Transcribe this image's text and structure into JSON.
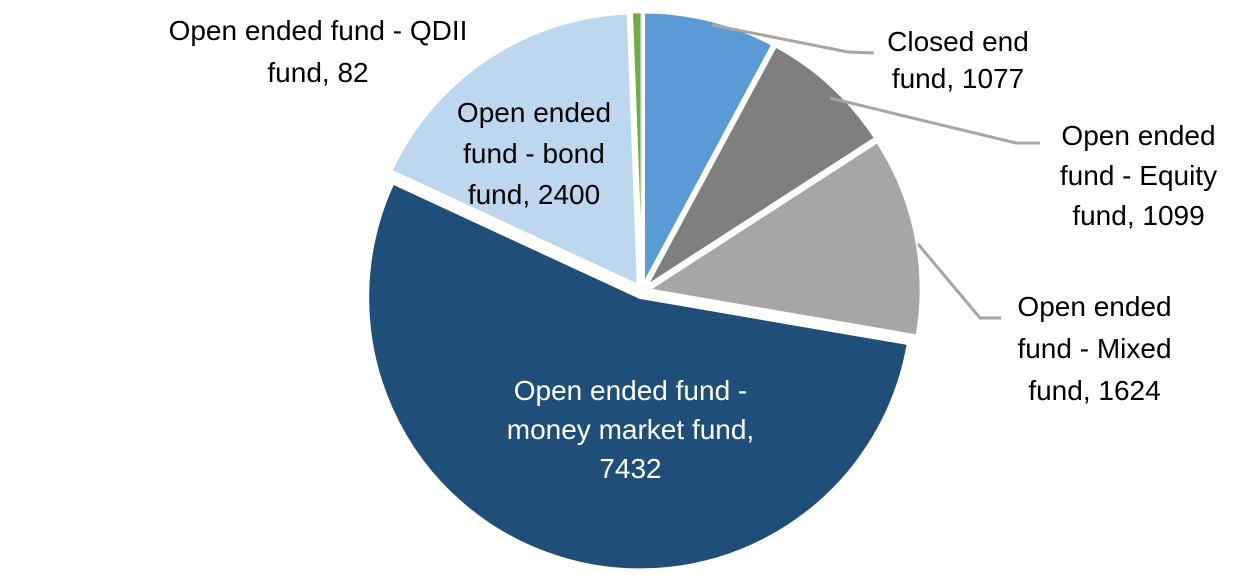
{
  "chart_data": {
    "type": "pie",
    "title": "",
    "total": 13714,
    "start_angle_deg": 0,
    "direction": "clockwise",
    "background_color": "#FFFFFF",
    "leader_line_color": "#A6A6A6",
    "slice_border_color": "#FFFFFF",
    "slices": [
      {
        "id": "closed-end-fund",
        "label": "Closed end fund",
        "value": 1077,
        "color": "#5B9BD5",
        "label_position": "outside",
        "label_color": "#000000",
        "leader_line": true,
        "label_lines": [
          "Closed end",
          "fund, 1077"
        ]
      },
      {
        "id": "equity-fund",
        "label": "Open ended fund - Equity fund",
        "value": 1099,
        "color": "#7F7F7F",
        "label_position": "outside",
        "label_color": "#000000",
        "leader_line": true,
        "label_lines": [
          "Open ended",
          "fund - Equity",
          "fund, 1099"
        ]
      },
      {
        "id": "mixed-fund",
        "label": "Open ended fund - Mixed fund",
        "value": 1624,
        "color": "#A6A6A6",
        "label_position": "outside",
        "label_color": "#000000",
        "leader_line": true,
        "label_lines": [
          "Open ended",
          "fund - Mixed",
          "fund, 1624"
        ]
      },
      {
        "id": "money-market-fund",
        "label": "Open ended fund - money market fund",
        "value": 7432,
        "color": "#1F4E79",
        "label_position": "inside",
        "label_color": "#FFFFFF",
        "leader_line": false,
        "label_lines": [
          "Open ended fund -",
          "money market fund,",
          "7432"
        ]
      },
      {
        "id": "bond-fund",
        "label": "Open ended fund - bond fund",
        "value": 2400,
        "color": "#BDD7EE",
        "label_position": "inside",
        "label_color": "#000000",
        "leader_line": false,
        "label_lines": [
          "Open ended",
          "fund - bond",
          "fund, 2400"
        ]
      },
      {
        "id": "qdii-fund",
        "label": "Open ended fund - QDII fund",
        "value": 82,
        "color": "#70AD47",
        "label_position": "outside",
        "label_color": "#000000",
        "leader_line": false,
        "label_lines": [
          "Open ended fund - QDII",
          "fund, 82"
        ]
      }
    ]
  }
}
